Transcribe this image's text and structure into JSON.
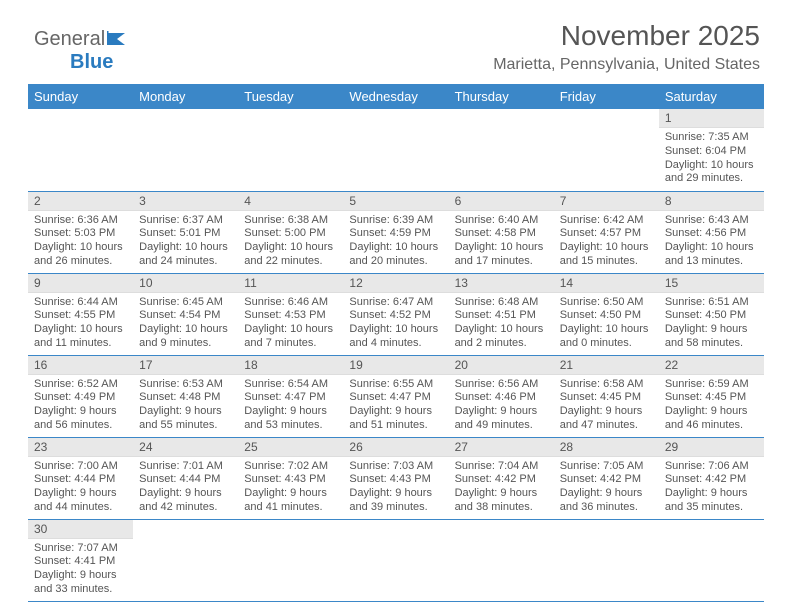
{
  "logo": {
    "text1": "General",
    "text2": "Blue"
  },
  "header": {
    "title": "November 2025",
    "location": "Marietta, Pennsylvania, United States"
  },
  "colors": {
    "header_bg": "#3b87c8",
    "header_fg": "#ffffff",
    "daynum_bg": "#e8e8e8",
    "text": "#555555",
    "border": "#3b87c8"
  },
  "weekdays": [
    "Sunday",
    "Monday",
    "Tuesday",
    "Wednesday",
    "Thursday",
    "Friday",
    "Saturday"
  ],
  "weeks": [
    [
      {
        "n": "",
        "sr": "",
        "ss": "",
        "dl": ""
      },
      {
        "n": "",
        "sr": "",
        "ss": "",
        "dl": ""
      },
      {
        "n": "",
        "sr": "",
        "ss": "",
        "dl": ""
      },
      {
        "n": "",
        "sr": "",
        "ss": "",
        "dl": ""
      },
      {
        "n": "",
        "sr": "",
        "ss": "",
        "dl": ""
      },
      {
        "n": "",
        "sr": "",
        "ss": "",
        "dl": ""
      },
      {
        "n": "1",
        "sr": "Sunrise: 7:35 AM",
        "ss": "Sunset: 6:04 PM",
        "dl": "Daylight: 10 hours and 29 minutes."
      }
    ],
    [
      {
        "n": "2",
        "sr": "Sunrise: 6:36 AM",
        "ss": "Sunset: 5:03 PM",
        "dl": "Daylight: 10 hours and 26 minutes."
      },
      {
        "n": "3",
        "sr": "Sunrise: 6:37 AM",
        "ss": "Sunset: 5:01 PM",
        "dl": "Daylight: 10 hours and 24 minutes."
      },
      {
        "n": "4",
        "sr": "Sunrise: 6:38 AM",
        "ss": "Sunset: 5:00 PM",
        "dl": "Daylight: 10 hours and 22 minutes."
      },
      {
        "n": "5",
        "sr": "Sunrise: 6:39 AM",
        "ss": "Sunset: 4:59 PM",
        "dl": "Daylight: 10 hours and 20 minutes."
      },
      {
        "n": "6",
        "sr": "Sunrise: 6:40 AM",
        "ss": "Sunset: 4:58 PM",
        "dl": "Daylight: 10 hours and 17 minutes."
      },
      {
        "n": "7",
        "sr": "Sunrise: 6:42 AM",
        "ss": "Sunset: 4:57 PM",
        "dl": "Daylight: 10 hours and 15 minutes."
      },
      {
        "n": "8",
        "sr": "Sunrise: 6:43 AM",
        "ss": "Sunset: 4:56 PM",
        "dl": "Daylight: 10 hours and 13 minutes."
      }
    ],
    [
      {
        "n": "9",
        "sr": "Sunrise: 6:44 AM",
        "ss": "Sunset: 4:55 PM",
        "dl": "Daylight: 10 hours and 11 minutes."
      },
      {
        "n": "10",
        "sr": "Sunrise: 6:45 AM",
        "ss": "Sunset: 4:54 PM",
        "dl": "Daylight: 10 hours and 9 minutes."
      },
      {
        "n": "11",
        "sr": "Sunrise: 6:46 AM",
        "ss": "Sunset: 4:53 PM",
        "dl": "Daylight: 10 hours and 7 minutes."
      },
      {
        "n": "12",
        "sr": "Sunrise: 6:47 AM",
        "ss": "Sunset: 4:52 PM",
        "dl": "Daylight: 10 hours and 4 minutes."
      },
      {
        "n": "13",
        "sr": "Sunrise: 6:48 AM",
        "ss": "Sunset: 4:51 PM",
        "dl": "Daylight: 10 hours and 2 minutes."
      },
      {
        "n": "14",
        "sr": "Sunrise: 6:50 AM",
        "ss": "Sunset: 4:50 PM",
        "dl": "Daylight: 10 hours and 0 minutes."
      },
      {
        "n": "15",
        "sr": "Sunrise: 6:51 AM",
        "ss": "Sunset: 4:50 PM",
        "dl": "Daylight: 9 hours and 58 minutes."
      }
    ],
    [
      {
        "n": "16",
        "sr": "Sunrise: 6:52 AM",
        "ss": "Sunset: 4:49 PM",
        "dl": "Daylight: 9 hours and 56 minutes."
      },
      {
        "n": "17",
        "sr": "Sunrise: 6:53 AM",
        "ss": "Sunset: 4:48 PM",
        "dl": "Daylight: 9 hours and 55 minutes."
      },
      {
        "n": "18",
        "sr": "Sunrise: 6:54 AM",
        "ss": "Sunset: 4:47 PM",
        "dl": "Daylight: 9 hours and 53 minutes."
      },
      {
        "n": "19",
        "sr": "Sunrise: 6:55 AM",
        "ss": "Sunset: 4:47 PM",
        "dl": "Daylight: 9 hours and 51 minutes."
      },
      {
        "n": "20",
        "sr": "Sunrise: 6:56 AM",
        "ss": "Sunset: 4:46 PM",
        "dl": "Daylight: 9 hours and 49 minutes."
      },
      {
        "n": "21",
        "sr": "Sunrise: 6:58 AM",
        "ss": "Sunset: 4:45 PM",
        "dl": "Daylight: 9 hours and 47 minutes."
      },
      {
        "n": "22",
        "sr": "Sunrise: 6:59 AM",
        "ss": "Sunset: 4:45 PM",
        "dl": "Daylight: 9 hours and 46 minutes."
      }
    ],
    [
      {
        "n": "23",
        "sr": "Sunrise: 7:00 AM",
        "ss": "Sunset: 4:44 PM",
        "dl": "Daylight: 9 hours and 44 minutes."
      },
      {
        "n": "24",
        "sr": "Sunrise: 7:01 AM",
        "ss": "Sunset: 4:44 PM",
        "dl": "Daylight: 9 hours and 42 minutes."
      },
      {
        "n": "25",
        "sr": "Sunrise: 7:02 AM",
        "ss": "Sunset: 4:43 PM",
        "dl": "Daylight: 9 hours and 41 minutes."
      },
      {
        "n": "26",
        "sr": "Sunrise: 7:03 AM",
        "ss": "Sunset: 4:43 PM",
        "dl": "Daylight: 9 hours and 39 minutes."
      },
      {
        "n": "27",
        "sr": "Sunrise: 7:04 AM",
        "ss": "Sunset: 4:42 PM",
        "dl": "Daylight: 9 hours and 38 minutes."
      },
      {
        "n": "28",
        "sr": "Sunrise: 7:05 AM",
        "ss": "Sunset: 4:42 PM",
        "dl": "Daylight: 9 hours and 36 minutes."
      },
      {
        "n": "29",
        "sr": "Sunrise: 7:06 AM",
        "ss": "Sunset: 4:42 PM",
        "dl": "Daylight: 9 hours and 35 minutes."
      }
    ],
    [
      {
        "n": "30",
        "sr": "Sunrise: 7:07 AM",
        "ss": "Sunset: 4:41 PM",
        "dl": "Daylight: 9 hours and 33 minutes."
      },
      {
        "n": "",
        "sr": "",
        "ss": "",
        "dl": ""
      },
      {
        "n": "",
        "sr": "",
        "ss": "",
        "dl": ""
      },
      {
        "n": "",
        "sr": "",
        "ss": "",
        "dl": ""
      },
      {
        "n": "",
        "sr": "",
        "ss": "",
        "dl": ""
      },
      {
        "n": "",
        "sr": "",
        "ss": "",
        "dl": ""
      },
      {
        "n": "",
        "sr": "",
        "ss": "",
        "dl": ""
      }
    ]
  ]
}
